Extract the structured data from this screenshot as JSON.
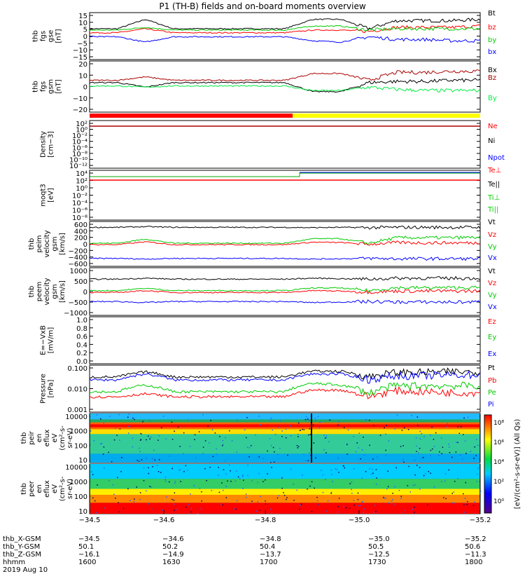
{
  "title": "P1 (TH-B) fields and on-board moments overview",
  "chart_data": [
    {
      "type": "line",
      "id": "fgs_gse",
      "ylabel": [
        "thb",
        "fgs",
        "gse",
        "[nT]"
      ],
      "ylim": [
        -20,
        15
      ],
      "yticks": [
        "15",
        "10",
        "5",
        "0",
        "−5",
        "−10",
        "−15"
      ],
      "series": [
        {
          "name": "Bt",
          "color": "#000000",
          "y": [
            3,
            3,
            10,
            3,
            3,
            3,
            3,
            3,
            10,
            10,
            3,
            9,
            9,
            9,
            10
          ]
        },
        {
          "name": "bz",
          "color": "#ff0000",
          "y": [
            0,
            0,
            3,
            0,
            0,
            0,
            0,
            0,
            2,
            2,
            1,
            4,
            4,
            4,
            5
          ]
        },
        {
          "name": "by",
          "color": "#00cc00",
          "y": [
            2,
            2,
            4,
            2,
            2,
            2,
            2,
            2,
            5,
            5,
            2,
            3,
            3,
            3,
            3
          ]
        },
        {
          "name": "bx",
          "color": "#0000ff",
          "y": [
            -3,
            -3,
            -7,
            -3,
            -3,
            -3,
            -3,
            -3,
            -6,
            -7,
            -3,
            -5,
            -5,
            -6,
            -6
          ]
        }
      ]
    },
    {
      "type": "line",
      "id": "fgs_gsm",
      "ylabel": [
        "thb",
        "fgs",
        "gsm",
        "[nT]"
      ],
      "ylim": [
        -25,
        20
      ],
      "yticks": [
        "20",
        "10",
        "0",
        "−10",
        "−20"
      ],
      "series": [
        {
          "name": "Bx",
          "color": "#000000",
          "y": [
            1,
            1,
            -3,
            1,
            1,
            1,
            1,
            1,
            -7,
            -7,
            1,
            2,
            2,
            3,
            3
          ]
        },
        {
          "name": "Bz",
          "color": "#aa0000",
          "y": [
            3,
            3,
            6,
            3,
            3,
            3,
            3,
            3,
            9,
            9,
            3,
            10,
            10,
            11,
            11
          ]
        },
        {
          "name": "By",
          "color": "#00ee44",
          "y": [
            -2,
            -2,
            -3,
            -2,
            -2,
            -2,
            -2,
            -2,
            -6,
            -6,
            -3,
            -5,
            -6,
            -6,
            -6
          ]
        }
      ]
    },
    {
      "type": "line",
      "id": "density",
      "ylabel": [
        "Density",
        "[cm−3]"
      ],
      "ylog": true,
      "yticks": [
        "10²",
        "10⁰",
        "10⁻²",
        "10⁻⁴",
        "10⁻⁶",
        "10⁻⁸",
        "10⁻¹⁰",
        "10⁻¹²"
      ],
      "series": [
        {
          "name": "Ne",
          "color": "#ff0000"
        },
        {
          "name": "Ni",
          "color": "#000000"
        },
        {
          "name": "Npot",
          "color": "#0000ff"
        }
      ]
    },
    {
      "type": "line",
      "id": "temp",
      "ylabel": [
        "moqt3",
        "[eV]"
      ],
      "ylog": true,
      "yticks": [
        "10⁴",
        "10²",
        "10⁰",
        "10⁻²",
        "10⁻⁴",
        "10⁻⁶",
        "10⁻⁸"
      ],
      "series": [
        {
          "name": "Te⊥",
          "color": "#ff0000"
        },
        {
          "name": "Te||",
          "color": "#000000"
        },
        {
          "name": "Ti⊥",
          "color": "#00cc00"
        },
        {
          "name": "Ti||",
          "color": "#00cc00"
        }
      ]
    },
    {
      "type": "line",
      "id": "peim",
      "ylabel": [
        "thb",
        "peim",
        "velocity",
        "gsm",
        "[km/s]"
      ],
      "ylim": [
        -650,
        650
      ],
      "yticks": [
        "600",
        "400",
        "200",
        "0",
        "−200",
        "−400",
        "−600"
      ],
      "series": [
        {
          "name": "Vt",
          "color": "#000000",
          "y": [
            480,
            480,
            500,
            480,
            480,
            480,
            480,
            480,
            470,
            480,
            470,
            480,
            480,
            480,
            480
          ]
        },
        {
          "name": "Vz",
          "color": "#ff0000",
          "y": [
            -20,
            -20,
            60,
            -20,
            -20,
            -20,
            -20,
            -20,
            50,
            40,
            -10,
            40,
            30,
            30,
            30
          ]
        },
        {
          "name": "Vy",
          "color": "#00cc00",
          "y": [
            20,
            20,
            140,
            20,
            20,
            20,
            20,
            20,
            150,
            150,
            20,
            180,
            180,
            180,
            190
          ]
        },
        {
          "name": "Vx",
          "color": "#0000ff",
          "y": [
            -420,
            -420,
            -440,
            -420,
            -420,
            -420,
            -420,
            -420,
            -440,
            -430,
            -420,
            -430,
            -430,
            -430,
            -430
          ]
        }
      ]
    },
    {
      "type": "line",
      "id": "peem",
      "ylabel": [
        "thb",
        "peem",
        "velocity",
        "gsm",
        "[km/s]"
      ],
      "ylim": [
        -1000,
        1000
      ],
      "yticks": [
        "1000",
        "500",
        "0",
        "−500",
        "−1000"
      ],
      "series": [
        {
          "name": "Vt",
          "color": "#000000",
          "y": [
            520,
            520,
            560,
            520,
            520,
            520,
            520,
            520,
            560,
            540,
            520,
            560,
            560,
            560,
            560
          ]
        },
        {
          "name": "Vz",
          "color": "#ff0000",
          "y": [
            -40,
            -40,
            40,
            -40,
            -40,
            -40,
            -40,
            -40,
            40,
            20,
            -20,
            20,
            20,
            20,
            20
          ]
        },
        {
          "name": "Vy",
          "color": "#00cc00",
          "y": [
            40,
            40,
            140,
            40,
            40,
            40,
            40,
            40,
            150,
            150,
            40,
            160,
            160,
            160,
            160
          ]
        },
        {
          "name": "Vx",
          "color": "#0000ff",
          "y": [
            -420,
            -420,
            -460,
            -420,
            -420,
            -420,
            -420,
            -420,
            -460,
            -440,
            -420,
            -440,
            -440,
            -440,
            -440
          ]
        }
      ]
    },
    {
      "type": "line",
      "id": "efield",
      "ylabel": [
        "E=−VxB",
        "[mV/m]"
      ],
      "ylim": [
        0,
        1
      ],
      "yticks": [
        "1.0",
        "0.8",
        "0.6",
        "0.4",
        "0.2",
        "0.0"
      ],
      "series": [
        {
          "name": "Ez",
          "color": "#ff0000"
        },
        {
          "name": "Ey",
          "color": "#00cc00"
        },
        {
          "name": "Ex",
          "color": "#0000ff"
        }
      ]
    },
    {
      "type": "line",
      "id": "pressure",
      "ylabel": [
        "Pressure",
        "[nPa]"
      ],
      "ylog": true,
      "ylim": [
        0.0005,
        0.3
      ],
      "yticks": [
        "0.100",
        "0.010",
        "0.001"
      ],
      "series": [
        {
          "name": "Pt",
          "color": "#000000",
          "y": [
            0.06,
            0.06,
            0.12,
            0.06,
            0.06,
            0.06,
            0.06,
            0.06,
            0.13,
            0.13,
            0.06,
            0.11,
            0.11,
            0.12,
            0.12
          ]
        },
        {
          "name": "Pb",
          "color": "#ff0000",
          "y": [
            0.004,
            0.004,
            0.006,
            0.004,
            0.004,
            0.004,
            0.004,
            0.004,
            0.01,
            0.01,
            0.004,
            0.009,
            0.008,
            0.007,
            0.007
          ]
        },
        {
          "name": "Pe",
          "color": "#00cc00",
          "y": [
            0.008,
            0.008,
            0.02,
            0.008,
            0.008,
            0.008,
            0.008,
            0.008,
            0.025,
            0.02,
            0.006,
            0.018,
            0.018,
            0.018,
            0.018
          ]
        },
        {
          "name": "Pi",
          "color": "#0000ff",
          "y": [
            0.04,
            0.04,
            0.09,
            0.04,
            0.04,
            0.04,
            0.04,
            0.04,
            0.09,
            0.09,
            0.04,
            0.07,
            0.07,
            0.08,
            0.08
          ]
        }
      ]
    },
    {
      "type": "heatmap",
      "id": "peir",
      "ylabel": [
        "thb",
        "peir",
        "en",
        "eflux",
        "eV",
        "(cm²-s-",
        "sr-eV)"
      ],
      "yticks": [
        "10000",
        "1000",
        "100",
        "10"
      ]
    },
    {
      "type": "heatmap",
      "id": "peer",
      "ylabel": [
        "thb",
        "peer",
        "en",
        "eflux",
        "eV",
        "(cm²-s-",
        "sr-eV)"
      ],
      "yticks": [
        "10000",
        "1000",
        "100",
        "10"
      ]
    }
  ],
  "colorbar": {
    "label": "[eV/(cm²-s-sr-eV)] (All Qs)",
    "ticks": [
      "10⁸",
      "10⁶",
      "10⁴",
      "10²",
      "10⁰"
    ]
  },
  "x_ticks": [
    "−34.5",
    "−34.6",
    "−34.8",
    "−35.0",
    "−35.2"
  ],
  "footer": {
    "rows": [
      {
        "label": "thb_X-GSM",
        "values": [
          "−34.5",
          "−34.6",
          "−34.8",
          "−35.0",
          "−35.2"
        ]
      },
      {
        "label": "thb_Y-GSM",
        "values": [
          "50.1",
          "50.2",
          "50.4",
          "50.5",
          "50.6"
        ]
      },
      {
        "label": "thb_Z-GSM",
        "values": [
          "−16.1",
          "−14.9",
          "−13.7",
          "−12.5",
          "−11.3"
        ]
      },
      {
        "label": "hhmm",
        "values": [
          "1600",
          "1630",
          "1700",
          "1730",
          "1800"
        ]
      }
    ],
    "date": "2019 Aug 10"
  }
}
